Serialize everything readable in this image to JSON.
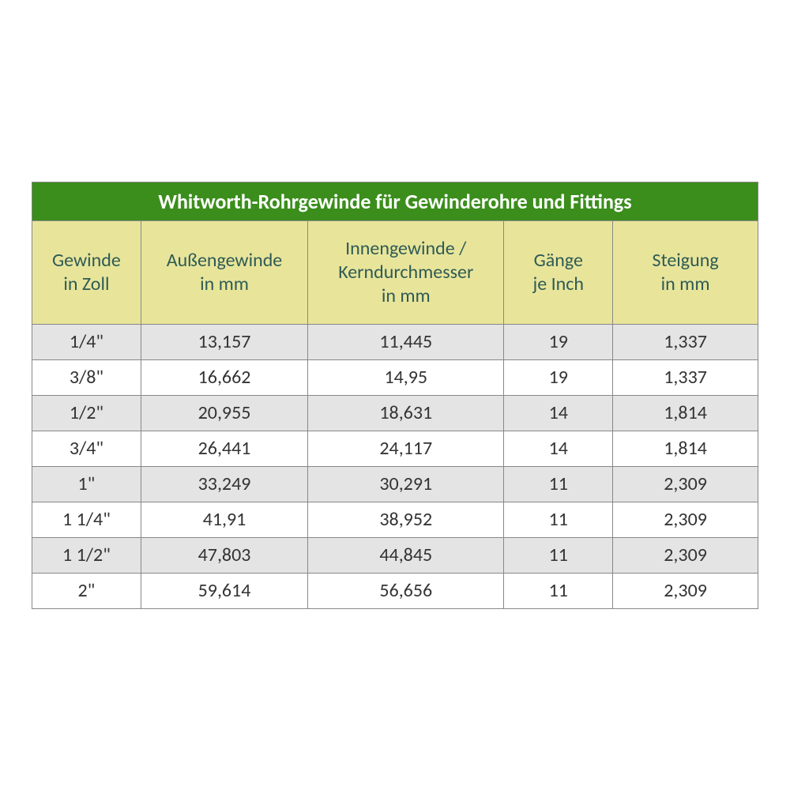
{
  "table": {
    "type": "table",
    "title": "Whitworth-Rohrgewinde für Gewinderohre und Fittings",
    "title_bg": "#3b8e1c",
    "title_color": "#ffffff",
    "title_fontsize": 26,
    "header_bg": "#e8e59b",
    "header_color": "#2f5b55",
    "header_fontsize": 24,
    "row_odd_bg": "#e4e4e4",
    "row_even_bg": "#ffffff",
    "cell_fontsize": 24,
    "cell_color": "#333333",
    "border_color": "#888888",
    "columns": [
      {
        "label_line1": "Gewinde",
        "label_line2": "in Zoll",
        "width_pct": 15
      },
      {
        "label_line1": "Außengewinde",
        "label_line2": "in mm",
        "width_pct": 23
      },
      {
        "label_line1": "Innengewinde /",
        "label_line2": "Kerndurchmesser",
        "label_line3": "in mm",
        "width_pct": 27
      },
      {
        "label_line1": "Gänge",
        "label_line2": "je Inch",
        "width_pct": 15
      },
      {
        "label_line1": "Steigung",
        "label_line2": "in mm",
        "width_pct": 20
      }
    ],
    "rows": [
      [
        "1/4\"",
        "13,157",
        "11,445",
        "19",
        "1,337"
      ],
      [
        "3/8\"",
        "16,662",
        "14,95",
        "19",
        "1,337"
      ],
      [
        "1/2\"",
        "20,955",
        "18,631",
        "14",
        "1,814"
      ],
      [
        "3/4\"",
        "26,441",
        "24,117",
        "14",
        "1,814"
      ],
      [
        "1\"",
        "33,249",
        "30,291",
        "11",
        "2,309"
      ],
      [
        "1 1/4\"",
        "41,91",
        "38,952",
        "11",
        "2,309"
      ],
      [
        "1 1/2\"",
        "47,803",
        "44,845",
        "11",
        "2,309"
      ],
      [
        "2\"",
        "59,614",
        "56,656",
        "11",
        "2,309"
      ]
    ]
  }
}
